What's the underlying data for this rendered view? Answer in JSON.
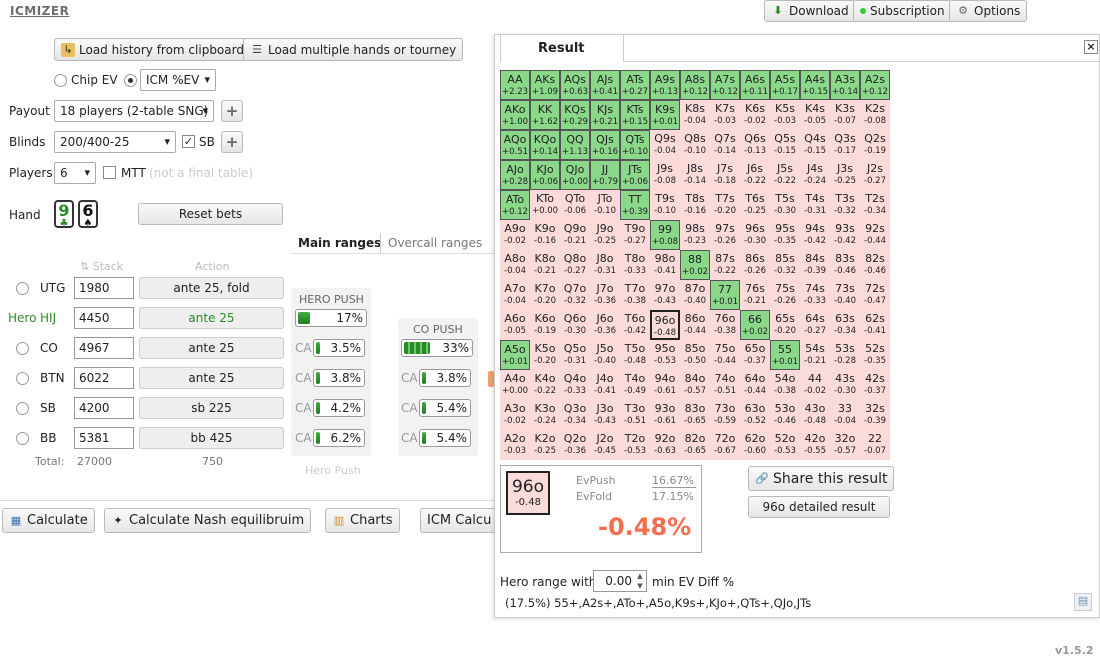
{
  "app": {
    "logo": "ICMIZER",
    "version": "v1.5.2"
  },
  "topbar": {
    "download": "Download",
    "subscription": "Subscription",
    "options": "Options"
  },
  "left": {
    "load_clipboard": "Load history from clipboard",
    "load_multiple": "Load multiple hands or tourney",
    "chip_ev": "Chip EV",
    "icm_ev": "ICM %EV",
    "payout_label": "Payout",
    "payout_value": "18 players (2-table SNG)",
    "blinds_label": "Blinds",
    "blinds_value": "200/400-25",
    "sb_label": "SB",
    "players_label": "Players",
    "players_value": "6",
    "mtt_label": "MTT",
    "mtt_note": "(not a final table)",
    "hand_label": "Hand",
    "card1": "9",
    "card2": "6",
    "reset_bets": "Reset bets",
    "tab_main": "Main ranges",
    "tab_overcall": "Overcall ranges",
    "col_stack": "Stack",
    "col_action": "Action",
    "hero_push_title": "HERO PUSH",
    "co_push_title": "CO PUSH",
    "hero_push_footer": "Hero Push",
    "hero_label": "Hero",
    "ca": "CA",
    "players": [
      {
        "pos": "UTG",
        "stack": "1980",
        "action": "ante 25, fold"
      },
      {
        "pos": "HIJ",
        "stack": "4450",
        "action": "ante 25"
      },
      {
        "pos": "CO",
        "stack": "4967",
        "action": "ante 25"
      },
      {
        "pos": "BTN",
        "stack": "6022",
        "action": "ante 25"
      },
      {
        "pos": "SB",
        "stack": "4200",
        "action": "sb 225"
      },
      {
        "pos": "BB",
        "stack": "5381",
        "action": "bb 425"
      }
    ],
    "hero_push": {
      "hij": "17%",
      "co": "3.5%",
      "btn": "3.8%",
      "sb": "4.2%",
      "bb": "6.2%"
    },
    "co_push": {
      "co": "33%",
      "btn": "3.8%",
      "sb": "5.4%",
      "bb": "5.4%"
    },
    "total_label": "Total:",
    "total_stack": "27000",
    "total_action": "750",
    "calculate": "Calculate",
    "nash": "Calculate Nash equilibruim",
    "charts": "Charts",
    "icm_calc": "ICM Calcu"
  },
  "result": {
    "tab": "Result",
    "sel_hand": "96o",
    "sel_val": "-0.48",
    "evpush_label": "EvPush",
    "evpush": "16.67%",
    "evfold_label": "EvFold",
    "evfold": "17.15%",
    "diff": "-0.48%",
    "share": "Share this result",
    "detailed": "96o detailed result",
    "hero_range_label": "Hero range with",
    "min_ev": "0.00",
    "min_ev_suffix": "min EV Diff %",
    "range_text": "(17.5%) 55+,A2s+,ATo+,A5o,K9s+,KJo+,QTs+,QJo,JTs",
    "grid": [
      [
        [
          "AA",
          "+2.23"
        ],
        [
          "AKs",
          "+1.09"
        ],
        [
          "AQs",
          "+0.63"
        ],
        [
          "AJs",
          "+0.41"
        ],
        [
          "ATs",
          "+0.27"
        ],
        [
          "A9s",
          "+0.13"
        ],
        [
          "A8s",
          "+0.12"
        ],
        [
          "A7s",
          "+0.12"
        ],
        [
          "A6s",
          "+0.11"
        ],
        [
          "A5s",
          "+0.17"
        ],
        [
          "A4s",
          "+0.15"
        ],
        [
          "A3s",
          "+0.14"
        ],
        [
          "A2s",
          "+0.12"
        ]
      ],
      [
        [
          "AKo",
          "+1.00"
        ],
        [
          "KK",
          "+1.62"
        ],
        [
          "KQs",
          "+0.29"
        ],
        [
          "KJs",
          "+0.21"
        ],
        [
          "KTs",
          "+0.15"
        ],
        [
          "K9s",
          "+0.01"
        ],
        [
          "K8s",
          "-0.04"
        ],
        [
          "K7s",
          "-0.03"
        ],
        [
          "K6s",
          "-0.02"
        ],
        [
          "K5s",
          "-0.03"
        ],
        [
          "K4s",
          "-0.05"
        ],
        [
          "K3s",
          "-0.07"
        ],
        [
          "K2s",
          "-0.08"
        ]
      ],
      [
        [
          "AQo",
          "+0.51"
        ],
        [
          "KQo",
          "+0.14"
        ],
        [
          "QQ",
          "+1.13"
        ],
        [
          "QJs",
          "+0.16"
        ],
        [
          "QTs",
          "+0.10"
        ],
        [
          "Q9s",
          "-0.04"
        ],
        [
          "Q8s",
          "-0.10"
        ],
        [
          "Q7s",
          "-0.14"
        ],
        [
          "Q6s",
          "-0.13"
        ],
        [
          "Q5s",
          "-0.15"
        ],
        [
          "Q4s",
          "-0.15"
        ],
        [
          "Q3s",
          "-0.17"
        ],
        [
          "Q2s",
          "-0.19"
        ]
      ],
      [
        [
          "AJo",
          "+0.28"
        ],
        [
          "KJo",
          "+0.06"
        ],
        [
          "QJo",
          "+0.00"
        ],
        [
          "JJ",
          "+0.79"
        ],
        [
          "JTs",
          "+0.06"
        ],
        [
          "J9s",
          "-0.08"
        ],
        [
          "J8s",
          "-0.14"
        ],
        [
          "J7s",
          "-0.18"
        ],
        [
          "J6s",
          "-0.22"
        ],
        [
          "J5s",
          "-0.22"
        ],
        [
          "J4s",
          "-0.24"
        ],
        [
          "J3s",
          "-0.25"
        ],
        [
          "J2s",
          "-0.27"
        ]
      ],
      [
        [
          "ATo",
          "+0.12"
        ],
        [
          "KTo",
          "+0.00"
        ],
        [
          "QTo",
          "-0.06"
        ],
        [
          "JTo",
          "-0.10"
        ],
        [
          "TT",
          "+0.39"
        ],
        [
          "T9s",
          "-0.10"
        ],
        [
          "T8s",
          "-0.16"
        ],
        [
          "T7s",
          "-0.20"
        ],
        [
          "T6s",
          "-0.25"
        ],
        [
          "T5s",
          "-0.30"
        ],
        [
          "T4s",
          "-0.31"
        ],
        [
          "T3s",
          "-0.32"
        ],
        [
          "T2s",
          "-0.34"
        ]
      ],
      [
        [
          "A9o",
          "-0.02"
        ],
        [
          "K9o",
          "-0.16"
        ],
        [
          "Q9o",
          "-0.21"
        ],
        [
          "J9o",
          "-0.25"
        ],
        [
          "T9o",
          "-0.27"
        ],
        [
          "99",
          "+0.08"
        ],
        [
          "98s",
          "-0.23"
        ],
        [
          "97s",
          "-0.26"
        ],
        [
          "96s",
          "-0.30"
        ],
        [
          "95s",
          "-0.35"
        ],
        [
          "94s",
          "-0.42"
        ],
        [
          "93s",
          "-0.42"
        ],
        [
          "92s",
          "-0.44"
        ]
      ],
      [
        [
          "A8o",
          "-0.04"
        ],
        [
          "K8o",
          "-0.21"
        ],
        [
          "Q8o",
          "-0.27"
        ],
        [
          "J8o",
          "-0.31"
        ],
        [
          "T8o",
          "-0.33"
        ],
        [
          "98o",
          "-0.41"
        ],
        [
          "88",
          "+0.02"
        ],
        [
          "87s",
          "-0.22"
        ],
        [
          "86s",
          "-0.26"
        ],
        [
          "85s",
          "-0.32"
        ],
        [
          "84s",
          "-0.39"
        ],
        [
          "83s",
          "-0.46"
        ],
        [
          "82s",
          "-0.46"
        ]
      ],
      [
        [
          "A7o",
          "-0.04"
        ],
        [
          "K7o",
          "-0.20"
        ],
        [
          "Q7o",
          "-0.32"
        ],
        [
          "J7o",
          "-0.36"
        ],
        [
          "T7o",
          "-0.38"
        ],
        [
          "97o",
          "-0.43"
        ],
        [
          "87o",
          "-0.40"
        ],
        [
          "77",
          "+0.01"
        ],
        [
          "76s",
          "-0.21"
        ],
        [
          "75s",
          "-0.26"
        ],
        [
          "74s",
          "-0.33"
        ],
        [
          "73s",
          "-0.40"
        ],
        [
          "72s",
          "-0.47"
        ]
      ],
      [
        [
          "A6o",
          "-0.05"
        ],
        [
          "K6o",
          "-0.19"
        ],
        [
          "Q6o",
          "-0.30"
        ],
        [
          "J6o",
          "-0.36"
        ],
        [
          "T6o",
          "-0.42"
        ],
        [
          "96o",
          "-0.48"
        ],
        [
          "86o",
          "-0.44"
        ],
        [
          "76o",
          "-0.38"
        ],
        [
          "66",
          "+0.02"
        ],
        [
          "65s",
          "-0.20"
        ],
        [
          "64s",
          "-0.27"
        ],
        [
          "63s",
          "-0.34"
        ],
        [
          "62s",
          "-0.41"
        ]
      ],
      [
        [
          "A5o",
          "+0.01"
        ],
        [
          "K5o",
          "-0.20"
        ],
        [
          "Q5o",
          "-0.31"
        ],
        [
          "J5o",
          "-0.40"
        ],
        [
          "T5o",
          "-0.48"
        ],
        [
          "95o",
          "-0.53"
        ],
        [
          "85o",
          "-0.50"
        ],
        [
          "75o",
          "-0.44"
        ],
        [
          "65o",
          "-0.37"
        ],
        [
          "55",
          "+0.01"
        ],
        [
          "54s",
          "-0.21"
        ],
        [
          "53s",
          "-0.28"
        ],
        [
          "52s",
          "-0.35"
        ]
      ],
      [
        [
          "A4o",
          "+0.00"
        ],
        [
          "K4o",
          "-0.22"
        ],
        [
          "Q4o",
          "-0.33"
        ],
        [
          "J4o",
          "-0.41"
        ],
        [
          "T4o",
          "-0.49"
        ],
        [
          "94o",
          "-0.61"
        ],
        [
          "84o",
          "-0.57"
        ],
        [
          "74o",
          "-0.51"
        ],
        [
          "64o",
          "-0.44"
        ],
        [
          "54o",
          "-0.38"
        ],
        [
          "44",
          "-0.02"
        ],
        [
          "43s",
          "-0.30"
        ],
        [
          "42s",
          "-0.37"
        ]
      ],
      [
        [
          "A3o",
          "-0.02"
        ],
        [
          "K3o",
          "-0.24"
        ],
        [
          "Q3o",
          "-0.34"
        ],
        [
          "J3o",
          "-0.43"
        ],
        [
          "T3o",
          "-0.51"
        ],
        [
          "93o",
          "-0.61"
        ],
        [
          "83o",
          "-0.65"
        ],
        [
          "73o",
          "-0.59"
        ],
        [
          "63o",
          "-0.52"
        ],
        [
          "53o",
          "-0.46"
        ],
        [
          "43o",
          "-0.48"
        ],
        [
          "33",
          "-0.04"
        ],
        [
          "32s",
          "-0.39"
        ]
      ],
      [
        [
          "A2o",
          "-0.03"
        ],
        [
          "K2o",
          "-0.25"
        ],
        [
          "Q2o",
          "-0.36"
        ],
        [
          "J2o",
          "-0.45"
        ],
        [
          "T2o",
          "-0.53"
        ],
        [
          "92o",
          "-0.63"
        ],
        [
          "82o",
          "-0.65"
        ],
        [
          "72o",
          "-0.67"
        ],
        [
          "62o",
          "-0.60"
        ],
        [
          "52o",
          "-0.53"
        ],
        [
          "42o",
          "-0.55"
        ],
        [
          "32o",
          "-0.57"
        ],
        [
          "22",
          "-0.07"
        ]
      ]
    ]
  }
}
